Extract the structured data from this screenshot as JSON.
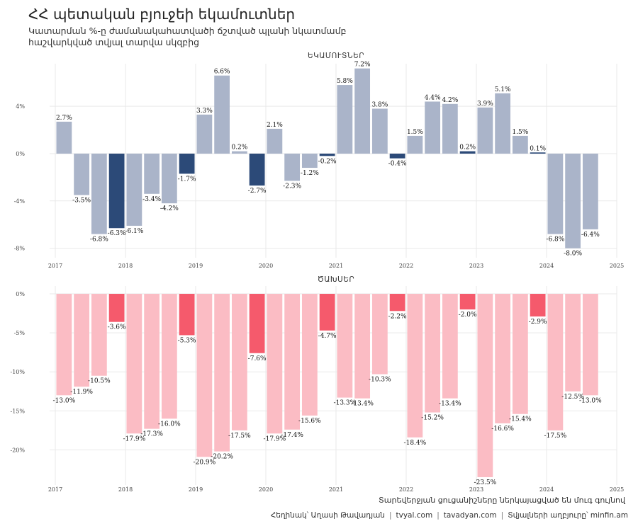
{
  "header": {
    "title": "ՀՀ պետական բյուջեի եկամուտներ",
    "subtitle_line1": "Կատարման %-ը ժամանակահատվածի ճշտված պլանի նկատմամբ",
    "subtitle_line2": "հաշվարկված տվյալ տարվա սկզբից"
  },
  "caption": "Տարեվերջյան ցուցանիշները ներկայացված են մուգ գույնով",
  "footer": {
    "author": "Հեղինակ՝ Աղասի Թավադյան",
    "site1": "tvyal.com",
    "site2": "tavadyan.com",
    "source": "Տվյալների աղբյուրը՝ minfin.am"
  },
  "colors": {
    "revenue_light": "#aab4c9",
    "revenue_dark": "#2c4a78",
    "expense_light": "#fbbcc4",
    "expense_dark": "#f55a6c"
  },
  "chart_data": [
    {
      "type": "bar",
      "title": "ԵԿԱՄՈՒՏՆԵՐ",
      "xlabel": "",
      "ylabel": "",
      "x_ticks": [
        "2017",
        "2018",
        "2019",
        "2020",
        "2021",
        "2022",
        "2023",
        "2024",
        "2025"
      ],
      "x_range": [
        2017,
        2025
      ],
      "y_ticks": [
        {
          "value": 4,
          "label": "4%"
        },
        {
          "value": 0,
          "label": "0%"
        },
        {
          "value": -4,
          "label": "-4%"
        },
        {
          "value": -8,
          "label": "-8%"
        }
      ],
      "ylim": [
        -8.8,
        7.6
      ],
      "grid": true,
      "x": [
        2017.125,
        2017.375,
        2017.625,
        2017.875,
        2018.125,
        2018.375,
        2018.625,
        2018.875,
        2019.125,
        2019.375,
        2019.625,
        2019.875,
        2020.125,
        2020.375,
        2020.625,
        2020.875,
        2021.125,
        2021.375,
        2021.625,
        2021.875,
        2022.125,
        2022.375,
        2022.625,
        2022.875,
        2023.125,
        2023.375,
        2023.625,
        2023.875,
        2024.125,
        2024.375,
        2024.625
      ],
      "values": [
        2.7,
        -3.5,
        -6.8,
        -6.3,
        -6.1,
        -3.4,
        -4.2,
        -1.7,
        3.3,
        6.6,
        0.2,
        -2.7,
        2.1,
        -2.3,
        -1.2,
        -0.2,
        5.8,
        7.2,
        3.8,
        -0.4,
        1.5,
        4.4,
        4.2,
        0.2,
        3.9,
        5.1,
        1.5,
        0.1,
        -6.8,
        -8.0,
        -6.4
      ],
      "labels": [
        "2.7%",
        "-3.5%",
        "-6.8%",
        "-6.3%",
        "-6.1%",
        "-3.4%",
        "-4.2%",
        "-1.7%",
        "3.3%",
        "6.6%",
        "0.2%",
        "-2.7%",
        "2.1%",
        "-2.3%",
        "-1.2%",
        "-0.2%",
        "5.8%",
        "7.2%",
        "3.8%",
        "-0.4%",
        "1.5%",
        "4.4%",
        "4.2%",
        "0.2%",
        "3.9%",
        "5.1%",
        "1.5%",
        "0.1%",
        "-6.8%",
        "-8.0%",
        "-6.4%"
      ],
      "year_end": [
        false,
        false,
        false,
        true,
        false,
        false,
        false,
        true,
        false,
        false,
        false,
        true,
        false,
        false,
        false,
        true,
        false,
        false,
        false,
        true,
        false,
        false,
        false,
        true,
        false,
        false,
        false,
        true,
        false,
        false,
        false
      ]
    },
    {
      "type": "bar",
      "title": "ԾԱԽՍԵՐ",
      "xlabel": "",
      "ylabel": "",
      "x_ticks": [
        "2017",
        "2018",
        "2019",
        "2020",
        "2021",
        "2022",
        "2023",
        "2024",
        "2025"
      ],
      "x_range": [
        2017,
        2025
      ],
      "y_ticks": [
        {
          "value": 0,
          "label": "0%"
        },
        {
          "value": -5,
          "label": "-5%"
        },
        {
          "value": -10,
          "label": "-10%"
        },
        {
          "value": -15,
          "label": "-15%"
        },
        {
          "value": -20,
          "label": "-20%"
        }
      ],
      "ylim": [
        -24.5,
        1.0
      ],
      "grid": true,
      "x": [
        2017.125,
        2017.375,
        2017.625,
        2017.875,
        2018.125,
        2018.375,
        2018.625,
        2018.875,
        2019.125,
        2019.375,
        2019.625,
        2019.875,
        2020.125,
        2020.375,
        2020.625,
        2020.875,
        2021.125,
        2021.375,
        2021.625,
        2021.875,
        2022.125,
        2022.375,
        2022.625,
        2022.875,
        2023.125,
        2023.375,
        2023.625,
        2023.875,
        2024.125,
        2024.375,
        2024.625
      ],
      "values": [
        -13.0,
        -11.9,
        -10.5,
        -3.6,
        -17.9,
        -17.3,
        -16.0,
        -5.3,
        -20.9,
        -20.2,
        -17.5,
        -7.6,
        -17.9,
        -17.4,
        -15.6,
        -4.7,
        -13.3,
        -13.4,
        -10.3,
        -2.2,
        -18.4,
        -15.2,
        -13.4,
        -2.0,
        -23.5,
        -16.6,
        -15.4,
        -2.9,
        -17.5,
        -12.5,
        -13.0
      ],
      "labels": [
        "-13.0%",
        "-11.9%",
        "-10.5%",
        "-3.6%",
        "-17.9%",
        "-17.3%",
        "-16.0%",
        "-5.3%",
        "-20.9%",
        "-20.2%",
        "-17.5%",
        "-7.6%",
        "-17.9%",
        "-17.4%",
        "-15.6%",
        "-4.7%",
        "-13.3%",
        "-13.4%",
        "-10.3%",
        "-2.2%",
        "-18.4%",
        "-15.2%",
        "-13.4%",
        "-2.0%",
        "-23.5%",
        "-16.6%",
        "-15.4%",
        "-2.9%",
        "-17.5%",
        "-12.5%",
        "-13.0%"
      ],
      "year_end": [
        false,
        false,
        false,
        true,
        false,
        false,
        false,
        true,
        false,
        false,
        false,
        true,
        false,
        false,
        false,
        true,
        false,
        false,
        false,
        true,
        false,
        false,
        false,
        true,
        false,
        false,
        false,
        true,
        false,
        false,
        false
      ]
    }
  ]
}
